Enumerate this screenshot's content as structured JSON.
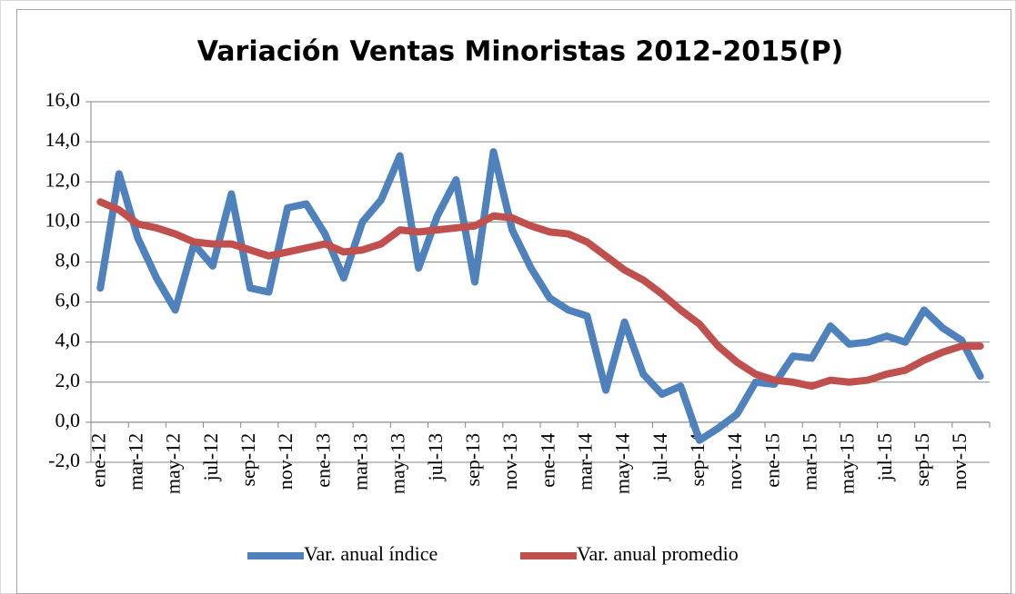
{
  "chart_data": {
    "type": "line",
    "title": "Variación Ventas Minoristas 2012-2015(P)",
    "categories": [
      "ene-12",
      null,
      "mar-12",
      null,
      "may-12",
      null,
      "jul-12",
      null,
      "sep-12",
      null,
      "nov-12",
      null,
      "ene-13",
      null,
      "mar-13",
      null,
      "may-13",
      null,
      "jul-13",
      null,
      "sep-13",
      null,
      "nov-13",
      null,
      "ene-14",
      null,
      "mar-14",
      null,
      "may-14",
      null,
      "jul-14",
      null,
      "sep-14",
      null,
      "nov-14",
      null,
      "ene-15",
      null,
      "mar-15",
      null,
      "may-15",
      null,
      "jul-15",
      null,
      "sep-15",
      null,
      "nov-15",
      null
    ],
    "series": [
      {
        "name": "Var. anual índice",
        "color": "#4f81bd",
        "values": [
          6.7,
          12.4,
          9.2,
          7.2,
          5.6,
          8.9,
          7.8,
          11.4,
          6.7,
          6.5,
          10.7,
          10.9,
          9.4,
          7.2,
          10.0,
          11.1,
          13.3,
          7.7,
          10.3,
          12.1,
          7.0,
          13.5,
          9.6,
          7.7,
          6.2,
          5.6,
          5.3,
          1.6,
          5.0,
          2.4,
          1.4,
          1.8,
          -0.9,
          -0.3,
          0.4,
          2.0,
          1.9,
          3.3,
          3.2,
          4.8,
          3.9,
          4.0,
          4.3,
          4.0,
          5.6,
          4.7,
          4.1,
          2.3
        ]
      },
      {
        "name": "Var. anual promedio",
        "color": "#c0504d",
        "values": [
          11.0,
          10.6,
          9.9,
          9.7,
          9.4,
          9.0,
          8.9,
          8.9,
          8.6,
          8.3,
          8.5,
          8.7,
          8.9,
          8.5,
          8.6,
          8.9,
          9.6,
          9.5,
          9.6,
          9.7,
          9.8,
          10.3,
          10.2,
          9.8,
          9.5,
          9.4,
          9.0,
          8.3,
          7.6,
          7.1,
          6.4,
          5.6,
          4.9,
          3.8,
          3.0,
          2.4,
          2.1,
          2.0,
          1.8,
          2.1,
          2.0,
          2.1,
          2.4,
          2.6,
          3.1,
          3.5,
          3.8,
          3.8
        ]
      }
    ],
    "ylim": [
      -2,
      16
    ],
    "yticks": [
      {
        "value": -2,
        "label": "-2,0"
      },
      {
        "value": 0,
        "label": "0,0"
      },
      {
        "value": 2,
        "label": "2,0"
      },
      {
        "value": 4,
        "label": "4,0"
      },
      {
        "value": 6,
        "label": "6,0"
      },
      {
        "value": 8,
        "label": "8,0"
      },
      {
        "value": 10,
        "label": "10,0"
      },
      {
        "value": 12,
        "label": "12,0"
      },
      {
        "value": 14,
        "label": "14,0"
      },
      {
        "value": 16,
        "label": "16,0"
      }
    ],
    "grid": true,
    "legend": "bottom"
  }
}
